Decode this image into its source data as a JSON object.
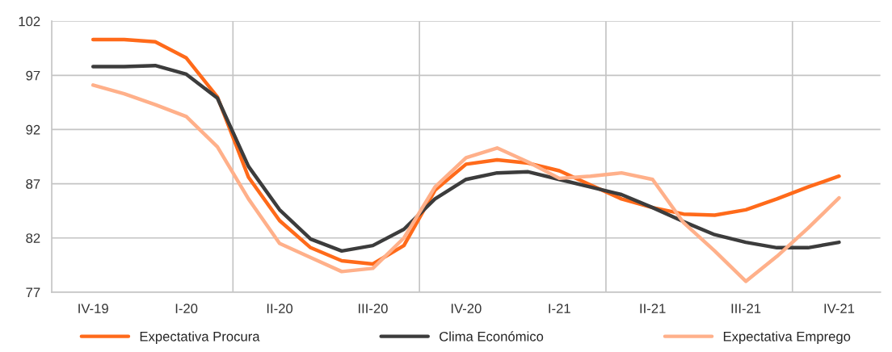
{
  "chart_data": {
    "type": "line",
    "categories": [
      "IV-19",
      null,
      null,
      "I-20",
      null,
      null,
      "II-20",
      null,
      null,
      "III-20",
      null,
      null,
      "IV-20",
      null,
      null,
      "I-21",
      null,
      null,
      "II-21",
      null,
      null,
      "III-21",
      null,
      null,
      "IV-21"
    ],
    "ylim": [
      77,
      102
    ],
    "yticks": [
      77,
      82,
      87,
      92,
      97,
      102
    ],
    "grid": true,
    "legend": "bottom",
    "marker": "none",
    "line_style": "solid",
    "series": [
      {
        "name": "Expectativa Procura",
        "color": "#ff6a1a",
        "values": [
          100.3,
          100.3,
          100.1,
          98.6,
          95.0,
          87.6,
          83.6,
          81.1,
          79.9,
          79.6,
          81.3,
          86.4,
          88.8,
          89.2,
          88.9,
          88.2,
          86.9,
          85.6,
          84.8,
          84.2,
          84.1,
          84.6,
          85.6,
          86.7,
          87.7
        ]
      },
      {
        "name": "Clima Económico",
        "color": "#3c3c3c",
        "values": [
          97.8,
          97.8,
          97.9,
          97.1,
          94.9,
          88.6,
          84.6,
          81.9,
          80.8,
          81.3,
          82.8,
          85.6,
          87.4,
          88.0,
          88.1,
          87.4,
          86.7,
          86.0,
          84.8,
          83.5,
          82.3,
          81.6,
          81.1,
          81.1,
          81.6
        ]
      },
      {
        "name": "Expectativa Emprego",
        "color": "#ffb08a",
        "values": [
          96.1,
          95.3,
          94.3,
          93.2,
          90.4,
          85.6,
          81.5,
          80.2,
          78.9,
          79.2,
          82.0,
          86.7,
          89.4,
          90.3,
          89.0,
          87.5,
          87.7,
          88.0,
          87.4,
          83.4,
          80.8,
          78.0,
          80.3,
          82.9,
          85.7
        ]
      }
    ]
  }
}
